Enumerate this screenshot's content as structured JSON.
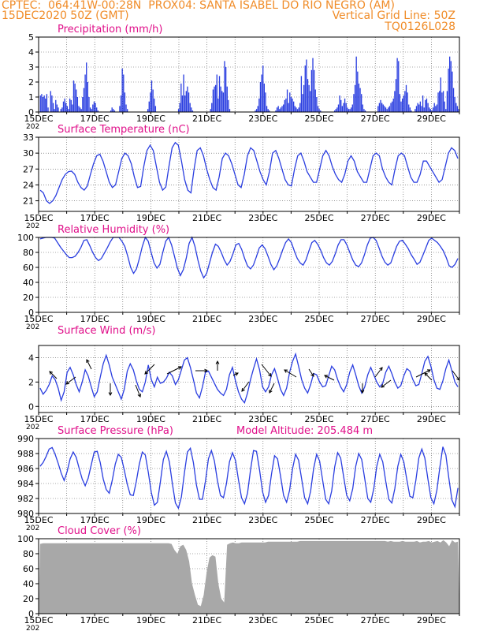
{
  "header": {
    "left_line1": "CPTEC:  064:41W-00:28N  PROX04: SANTA ISABEL DO RIO NEGRO (AM)",
    "left_line2": "15DEC2020 50Z (GMT)",
    "right_line2": "Vertical Grid Line: 50Z",
    "right_line3": "TQ0126L028"
  },
  "colors": {
    "header": "#f08c28",
    "panel_title": "#e0108a",
    "series": "#2a3ee0",
    "cloud": "#a8a8a8",
    "grid": "#555555",
    "wind_arrow": "#000000"
  },
  "x_axis": {
    "labels": [
      "15DEC",
      "17DEC",
      "19DEC",
      "21DEC",
      "23DEC",
      "25DEC",
      "27DEC",
      "29DEC"
    ],
    "year_fragment": "202"
  },
  "chart_data": [
    {
      "type": "bar",
      "title": "Precipitation (mm/h)",
      "ylim": [
        0,
        5
      ],
      "yticks": [
        0,
        1,
        2,
        3,
        4,
        5
      ],
      "x_range_days": [
        15,
        30
      ],
      "bar_values_note": "hourly precipitation",
      "values": [
        0,
        1.1,
        1.2,
        1.0,
        1.1,
        0.9,
        1.2,
        0.3,
        0,
        1.4,
        1.1,
        0.6,
        0.2,
        0.8,
        0.5,
        0.3,
        0,
        0.2,
        0.3,
        0.7,
        0.9,
        0.6,
        0.4,
        0.2,
        0.9,
        0.8,
        0.5,
        2.1,
        1.9,
        1.5,
        1.0,
        0.4,
        0.3,
        0.2,
        1.0,
        1.6,
        2.5,
        3.3,
        2.0,
        1.0,
        0.3,
        0.2,
        0.5,
        0.7,
        0.6,
        0.3,
        0.1,
        0,
        0,
        0,
        0,
        0,
        0,
        0,
        0,
        0,
        0.1,
        0.3,
        0.2,
        0.1,
        0,
        0,
        0,
        0.4,
        1.1,
        2.9,
        2.5,
        1.3,
        0.5,
        0.2,
        0,
        0,
        0,
        0,
        0,
        0,
        0,
        0,
        0,
        0,
        0,
        0,
        0,
        0,
        0,
        0.2,
        0.7,
        1.3,
        2.1,
        1.5,
        0.9,
        0.4,
        0,
        0,
        0,
        0,
        0,
        0,
        0,
        0,
        0,
        0,
        0,
        0,
        0,
        0,
        0,
        0,
        0,
        0.2,
        0.6,
        1.9,
        1.1,
        2.5,
        1.1,
        1.4,
        1.7,
        1.3,
        0.6,
        0.3,
        0.1,
        0,
        0,
        0,
        0,
        0,
        0,
        0,
        0,
        0,
        0,
        0,
        0,
        0,
        0.2,
        0.6,
        1.5,
        1.7,
        1.8,
        2.5,
        0.9,
        2.4,
        1.7,
        1.4,
        1.3,
        3.4,
        3.0,
        1.7,
        0.8,
        0.2,
        0,
        0,
        0,
        0,
        0,
        0,
        0,
        0,
        0,
        0,
        0,
        0,
        0,
        0,
        0,
        0,
        0,
        0,
        0,
        0.1,
        0.2,
        0.4,
        0.9,
        2.0,
        2.5,
        3.1,
        1.9,
        1.3,
        0.4,
        0.2,
        0.1,
        0,
        0,
        0,
        0,
        0.1,
        0.3,
        0.4,
        0.2,
        0.3,
        0.4,
        0.5,
        0.8,
        0.9,
        1.5,
        0.6,
        1.3,
        1.0,
        0.9,
        0.7,
        0.4,
        0.3,
        0.2,
        0.3,
        0.6,
        2.4,
        1.2,
        1.8,
        3.1,
        3.5,
        2.2,
        1.8,
        1.4,
        2.8,
        3.6,
        2.8,
        1.5,
        1.0,
        0.4,
        0.2,
        0.1,
        0,
        0,
        0,
        0,
        0,
        0,
        0,
        0,
        0,
        0,
        0.1,
        0.2,
        0.3,
        0.5,
        1.1,
        0.8,
        0.4,
        0.6,
        0.9,
        0.6,
        0.3,
        0.2,
        0.2,
        0.3,
        0.5,
        1.2,
        1.8,
        3.7,
        2.7,
        1.9,
        1.6,
        1.2,
        0.5,
        0.2,
        0.1,
        0,
        0,
        0,
        0,
        0,
        0,
        0,
        0,
        0,
        0.4,
        0.6,
        0.8,
        0.6,
        0.5,
        0.4,
        0.3,
        0.2,
        0.3,
        0.4,
        0.6,
        0.7,
        0.9,
        1.4,
        2.2,
        3.6,
        3.4,
        1.2,
        0.7,
        0.9,
        1.1,
        1.4,
        1.8,
        1.3,
        0.5,
        0.3,
        0.1,
        0,
        0,
        0.2,
        0.4,
        0.6,
        0.5,
        0.7,
        0.4,
        1.1,
        0.3,
        0.8,
        0.9,
        0.6,
        0.3,
        0.2,
        0.1,
        0.3,
        0.6,
        0.4,
        0.5,
        1.3,
        1.4,
        2.3,
        1.3,
        1.4,
        0.7,
        0.2,
        1.4,
        2.9,
        3.7,
        3.4,
        2.7,
        1.6,
        1.0,
        0.6,
        0.4,
        0.2
      ]
    },
    {
      "type": "line",
      "title": "Surface Temperature (nC)",
      "ylim": [
        19,
        33
      ],
      "yticks": [
        21,
        24,
        27,
        30,
        33
      ],
      "x_range_days": [
        15,
        30
      ],
      "values": [
        23,
        22.5,
        21,
        20.5,
        21,
        22,
        23.5,
        25,
        26,
        26.5,
        26.6,
        26,
        24.5,
        23.5,
        23,
        23.8,
        26,
        28,
        29.5,
        29.8,
        28.5,
        26.5,
        24.5,
        23.5,
        24,
        26.5,
        29,
        30,
        29.5,
        28,
        25.5,
        23.5,
        23.7,
        27.5,
        30.5,
        31.5,
        30.5,
        27.5,
        24.5,
        23,
        23.6,
        27.5,
        31,
        32,
        31.5,
        28.5,
        25,
        23,
        22.5,
        27,
        30.5,
        31,
        29.5,
        27,
        25,
        23.5,
        23,
        25.5,
        29,
        30,
        29.5,
        28,
        26,
        24,
        23.5,
        26,
        29.5,
        31,
        30.5,
        28.5,
        26.5,
        25,
        24,
        26.5,
        30,
        30.5,
        29,
        27,
        25,
        24,
        23.8,
        27,
        29.5,
        30,
        28.5,
        26.5,
        25.5,
        24.5,
        24.5,
        27,
        29.5,
        30.5,
        29.5,
        27.5,
        26,
        25,
        24.5,
        26,
        28.5,
        29.5,
        28.5,
        26.5,
        25.5,
        24.5,
        24.5,
        27,
        29.5,
        30,
        29.5,
        27,
        25.5,
        24.5,
        24,
        27,
        29.5,
        30,
        29.5,
        27.5,
        25.5,
        24.5,
        24.5,
        26,
        28.5,
        28.5,
        27.5,
        26.5,
        25.5,
        24.5,
        25,
        27.5,
        30,
        31,
        30.5,
        29
      ]
    },
    {
      "type": "line",
      "title": "Relative Humidity (%)",
      "ylim": [
        0,
        100
      ],
      "yticks": [
        0,
        20,
        40,
        60,
        80,
        100
      ],
      "x_range_days": [
        15,
        30
      ],
      "values": [
        98,
        99,
        100,
        100,
        100,
        99,
        93,
        87,
        82,
        77,
        73,
        73,
        75,
        80,
        87,
        96,
        97,
        89,
        80,
        73,
        69,
        72,
        79,
        86,
        94,
        100,
        100,
        100,
        95,
        88,
        75,
        60,
        52,
        58,
        72,
        88,
        100,
        95,
        80,
        66,
        59,
        64,
        80,
        95,
        100,
        90,
        75,
        59,
        49,
        57,
        72,
        92,
        100,
        88,
        70,
        55,
        46,
        52,
        66,
        80,
        91,
        88,
        80,
        70,
        63,
        68,
        78,
        90,
        92,
        84,
        72,
        62,
        58,
        63,
        74,
        86,
        90,
        85,
        75,
        64,
        57,
        62,
        72,
        83,
        93,
        98,
        93,
        82,
        72,
        66,
        63,
        70,
        82,
        93,
        96,
        91,
        83,
        73,
        66,
        63,
        68,
        78,
        90,
        97,
        97,
        90,
        80,
        70,
        63,
        61,
        66,
        77,
        90,
        99,
        100,
        96,
        86,
        75,
        67,
        63,
        66,
        77,
        88,
        95,
        96,
        91,
        85,
        77,
        71,
        64,
        67,
        76,
        86,
        96,
        99,
        96,
        93,
        88,
        82,
        73,
        62,
        60,
        64,
        72
      ]
    },
    {
      "type": "line",
      "title": "Surface Wind (m/s)",
      "ylim": [
        -0.5,
        5
      ],
      "yticks": [
        0,
        2,
        4
      ],
      "x_range_days": [
        15,
        30
      ],
      "values": [
        1.5,
        1.0,
        1.3,
        1.8,
        2.5,
        2.2,
        1.5,
        0.5,
        1.2,
        2.8,
        3.2,
        2.6,
        1.8,
        1.2,
        2.0,
        3.0,
        2.5,
        1.6,
        0.8,
        1.2,
        2.4,
        3.5,
        4.2,
        3.4,
        2.4,
        1.8,
        1.2,
        0.6,
        1.4,
        2.9,
        3.5,
        3.0,
        2.1,
        1.4,
        1.2,
        2.0,
        3.4,
        2.2,
        1.6,
        2.4,
        1.9,
        2.0,
        2.3,
        2.8,
        2.5,
        1.8,
        2.2,
        3.0,
        3.8,
        4.0,
        3.2,
        2.2,
        1.1,
        0.7,
        1.6,
        2.8,
        2.9,
        2.4,
        1.9,
        1.4,
        1.1,
        0.9,
        1.4,
        2.6,
        3.2,
        2.1,
        1.2,
        0.6,
        0.3,
        1.1,
        2.2,
        3.1,
        3.9,
        3.0,
        1.6,
        1.2,
        1.6,
        2.6,
        3.1,
        2.3,
        1.4,
        0.9,
        1.5,
        2.8,
        3.7,
        4.3,
        3.3,
        2.2,
        1.5,
        1.1,
        1.8,
        2.7,
        2.6,
        2.0,
        1.6,
        1.7,
        2.5,
        3.3,
        3.0,
        2.2,
        1.6,
        1.2,
        1.8,
        2.8,
        3.4,
        2.6,
        1.7,
        1.1,
        1.6,
        2.6,
        3.2,
        2.6,
        2.0,
        1.6,
        1.9,
        2.8,
        3.3,
        2.7,
        2.0,
        1.5,
        1.7,
        2.5,
        3.1,
        2.9,
        2.2,
        1.7,
        1.8,
        2.7,
        3.7,
        4.1,
        3.3,
        2.2,
        1.5,
        1.4,
        2.1,
        3.1,
        3.8,
        2.9,
        2.0,
        1.6
      ],
      "arrows_note": "wind direction vectors"
    },
    {
      "type": "line",
      "title": "Surface Pressure (hPa)",
      "annotation": "Model Altitude: 205.484 m",
      "ylim": [
        980,
        990
      ],
      "yticks": [
        980,
        982,
        984,
        986,
        988,
        990
      ],
      "x_range_days": [
        15,
        30
      ],
      "values": [
        986.3,
        986.8,
        987.6,
        988.6,
        988.8,
        987.9,
        986.7,
        985.4,
        984.4,
        985.6,
        987.3,
        988.2,
        987.5,
        986.0,
        984.6,
        983.7,
        984.7,
        986.5,
        988.2,
        988.3,
        986.8,
        984.6,
        983.2,
        982.7,
        984.4,
        986.6,
        987.9,
        987.5,
        985.8,
        983.9,
        982.5,
        982.4,
        984.3,
        986.6,
        988.2,
        987.8,
        985.5,
        982.8,
        981.1,
        981.5,
        984.2,
        987.2,
        988.3,
        986.9,
        984.0,
        981.4,
        980.7,
        982.2,
        985.4,
        988.2,
        988.7,
        986.8,
        983.8,
        981.9,
        981.9,
        984.3,
        987.3,
        988.4,
        987.0,
        984.4,
        982.4,
        982.1,
        984.0,
        986.9,
        988.1,
        987.1,
        984.5,
        982.1,
        981.3,
        982.7,
        985.8,
        988.4,
        988.3,
        985.8,
        982.9,
        981.5,
        982.4,
        985.3,
        987.7,
        987.3,
        985.0,
        982.4,
        981.5,
        983.1,
        986.0,
        987.9,
        987.1,
        984.6,
        982.1,
        981.3,
        983.0,
        986.0,
        987.9,
        987.0,
        984.4,
        981.9,
        981.3,
        983.0,
        986.2,
        988.1,
        987.4,
        984.9,
        982.4,
        981.7,
        983.3,
        986.3,
        988.0,
        987.2,
        984.6,
        982.0,
        981.5,
        983.3,
        986.3,
        987.9,
        986.9,
        984.3,
        981.9,
        981.4,
        983.3,
        986.3,
        987.9,
        986.9,
        984.5,
        982.3,
        982.1,
        984.4,
        987.4,
        988.6,
        987.4,
        984.6,
        982.1,
        981.3,
        983.1,
        986.2,
        988.9,
        987.8,
        984.7,
        981.8,
        980.9,
        983.4
      ]
    },
    {
      "type": "area",
      "title": "Cloud Cover (%)",
      "ylim": [
        0,
        100
      ],
      "yticks": [
        0,
        20,
        40,
        60,
        80,
        100
      ],
      "x_range_days": [
        15,
        30
      ],
      "values": [
        93,
        94,
        94,
        94,
        94,
        94,
        94,
        94,
        94,
        94,
        94,
        94,
        94,
        94,
        94,
        94,
        94,
        94,
        94,
        94,
        94,
        94,
        94,
        94,
        94,
        94,
        94,
        94,
        94,
        94,
        94,
        94,
        94,
        94,
        94,
        94,
        94,
        94,
        94,
        94,
        94,
        94,
        94,
        94,
        94,
        93,
        85,
        80,
        90,
        92,
        85,
        70,
        40,
        25,
        12,
        10,
        25,
        55,
        75,
        78,
        76,
        40,
        20,
        15,
        92,
        94,
        95,
        94,
        94,
        95,
        95,
        95,
        95,
        95,
        95,
        95,
        95,
        95,
        96,
        96,
        96,
        96,
        96,
        96,
        96,
        96,
        96,
        96,
        96,
        97,
        97,
        97,
        97,
        97,
        97,
        97,
        97,
        97,
        97,
        97,
        97,
        97,
        97,
        97,
        97,
        97,
        97,
        97,
        97,
        97,
        97,
        97,
        97,
        97,
        97,
        97,
        97,
        97,
        97,
        96,
        97,
        96,
        96,
        96,
        97,
        96,
        96,
        96,
        96,
        97,
        95,
        96,
        96,
        97,
        95,
        96,
        97,
        95,
        98,
        95,
        90,
        98,
        95,
        96
      ]
    }
  ]
}
